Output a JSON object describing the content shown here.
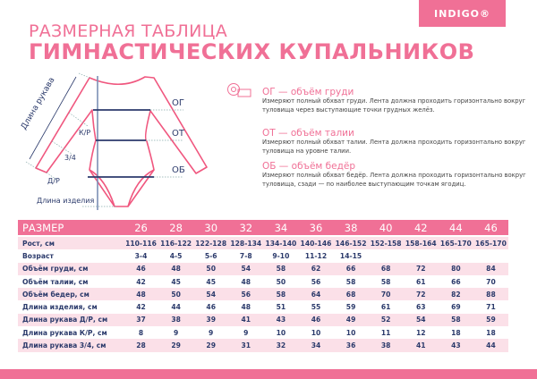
{
  "brand": {
    "logo": "INDIGO®",
    "colors": {
      "pink": "#f07096",
      "navy": "#2b3a6b",
      "stripe": "#fbe0e8"
    }
  },
  "title": {
    "line1": "РАЗМЕРНАЯ ТАБЛИЦА",
    "line2": "ГИМНАСТИЧЕСКИХ КУПАЛЬНИКОВ"
  },
  "diagram": {
    "sleeve_length": "Длина рукава",
    "kr": "К/Р",
    "three_quarter": "3/4",
    "dr": "Д/Р",
    "item_length": "Длина изделия",
    "og": "ОГ",
    "ot": "ОТ",
    "ob": "ОБ"
  },
  "measures": [
    {
      "title": "ОГ — объём груди",
      "text": "Измеряют полный обхват груди. Лента должна проходить горизонтально вокруг туловища через выступающие точки грудных желёз."
    },
    {
      "title": "ОТ — объём талии",
      "text": "Измеряют полный обхват талии. Лента должна проходить горизонтально вокруг туловища на уровне талии."
    },
    {
      "title": "ОБ — объём бедёр",
      "text": "Измеряют полный обхват бедёр. Лента должна проходить горизонтально вокруг туловища, сзади — по наиболее выступающим точкам ягодиц."
    }
  ],
  "table": {
    "header": {
      "label": "РАЗМЕР",
      "sizes": [
        "26",
        "28",
        "30",
        "32",
        "34",
        "36",
        "38",
        "40",
        "42",
        "44",
        "46"
      ]
    },
    "rows": [
      {
        "label": "Рост, см",
        "values": [
          "110-116",
          "116-122",
          "122-128",
          "128-134",
          "134-140",
          "140-146",
          "146-152",
          "152-158",
          "158-164",
          "165-170",
          "165-170"
        ]
      },
      {
        "label": "Возраст",
        "values": [
          "3-4",
          "4-5",
          "5-6",
          "7-8",
          "9-10",
          "11-12",
          "14-15",
          "",
          "",
          "",
          ""
        ]
      },
      {
        "label": "Объём  груди, см",
        "values": [
          "46",
          "48",
          "50",
          "54",
          "58",
          "62",
          "66",
          "68",
          "72",
          "80",
          "84"
        ]
      },
      {
        "label": "Объём  талии, см",
        "values": [
          "42",
          "45",
          "45",
          "48",
          "50",
          "56",
          "58",
          "58",
          "61",
          "66",
          "70"
        ]
      },
      {
        "label": "Объём  бедер, см",
        "values": [
          "48",
          "50",
          "54",
          "56",
          "58",
          "64",
          "68",
          "70",
          "72",
          "82",
          "88"
        ]
      },
      {
        "label": "Длина изделия, см",
        "values": [
          "42",
          "44",
          "46",
          "48",
          "51",
          "55",
          "59",
          "61",
          "63",
          "69",
          "71"
        ]
      },
      {
        "label": "Длина рукава  Д/Р, см",
        "values": [
          "37",
          "38",
          "39",
          "41",
          "43",
          "46",
          "49",
          "52",
          "54",
          "58",
          "59"
        ]
      },
      {
        "label": "Длина рукава  К/Р, см",
        "values": [
          "8",
          "9",
          "9",
          "9",
          "10",
          "10",
          "10",
          "11",
          "12",
          "18",
          "18"
        ]
      },
      {
        "label": "Длина рукава  3/4, см",
        "values": [
          "28",
          "29",
          "29",
          "31",
          "32",
          "34",
          "36",
          "38",
          "41",
          "43",
          "44"
        ]
      }
    ]
  }
}
